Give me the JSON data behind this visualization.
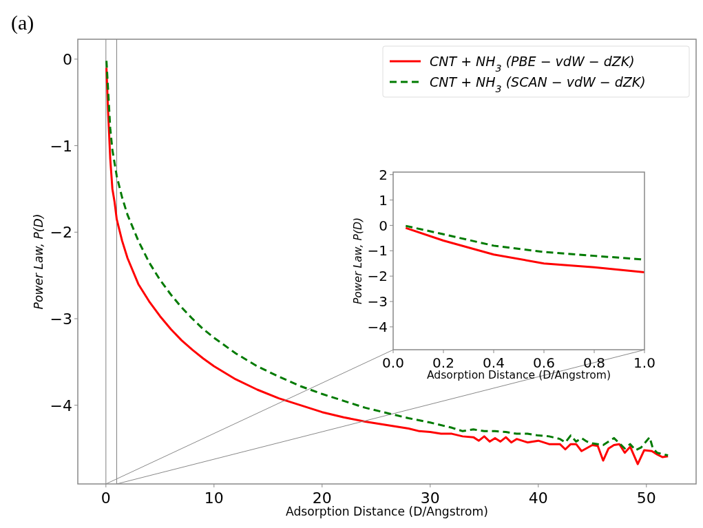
{
  "chart_data": [
    {
      "type": "line",
      "title": "(a)",
      "xlabel": "Adsorption Distance (D/Angstrom)",
      "ylabel": "Power Law,  P(D)",
      "xlim": [
        -2.6,
        54.6
      ],
      "ylim": [
        -4.91,
        0.23
      ],
      "xticks": [
        0,
        10,
        20,
        30,
        40,
        50
      ],
      "yticks": [
        {
          "value": -4,
          "label": "−4"
        },
        {
          "value": -3,
          "label": "−3"
        },
        {
          "value": -2,
          "label": "−2"
        },
        {
          "value": -1,
          "label": "−1"
        },
        0
      ],
      "legend": "top right",
      "ref_lines": [
        {
          "axis": "x",
          "value": 0,
          "color": "#808080"
        },
        {
          "axis": "x",
          "value": 1,
          "color": "#808080"
        }
      ],
      "series": [
        {
          "name": "CNT + NH$_{3}$ (PBE − vdW − dZK)",
          "color": "#ff0000",
          "line_style": "solid",
          "x": [
            0.05,
            0.2,
            0.4,
            0.6,
            0.8,
            1,
            1.5,
            2,
            3,
            4,
            5,
            6,
            7,
            8,
            9,
            10,
            12,
            14,
            16,
            18,
            20,
            22,
            24,
            26,
            28,
            29,
            30,
            31,
            32,
            33,
            34,
            34.5,
            35,
            35.5,
            36,
            36.5,
            37,
            37.5,
            38,
            39,
            40,
            41,
            42,
            42.5,
            43,
            43.5,
            44,
            45,
            45.5,
            46,
            46.5,
            47,
            47.5,
            48,
            48.5,
            49.2,
            49.8,
            50.5,
            51,
            51.5,
            52
          ],
          "values": [
            -0.1,
            -0.6,
            -1.15,
            -1.5,
            -1.65,
            -1.85,
            -2.1,
            -2.3,
            -2.6,
            -2.8,
            -2.97,
            -3.12,
            -3.25,
            -3.36,
            -3.46,
            -3.55,
            -3.7,
            -3.82,
            -3.92,
            -4.0,
            -4.08,
            -4.14,
            -4.19,
            -4.23,
            -4.27,
            -4.3,
            -4.31,
            -4.33,
            -4.33,
            -4.36,
            -4.37,
            -4.41,
            -4.36,
            -4.42,
            -4.38,
            -4.42,
            -4.37,
            -4.43,
            -4.39,
            -4.43,
            -4.41,
            -4.45,
            -4.45,
            -4.51,
            -4.45,
            -4.45,
            -4.53,
            -4.46,
            -4.47,
            -4.64,
            -4.5,
            -4.46,
            -4.45,
            -4.55,
            -4.48,
            -4.68,
            -4.52,
            -4.53,
            -4.57,
            -4.6,
            -4.59
          ]
        },
        {
          "color": "#888888",
          "line_style": "solid",
          "x": [
            0,
            26.57
          ],
          "values": [
            -4.91,
            -3.36
          ]
        },
        {
          "color": "#888888",
          "line_style": "solid",
          "x": [
            1,
            49.82
          ],
          "values": [
            -4.91,
            -3.36
          ]
        },
        {
          "name": "CNT + NH$_{3}$ (SCAN − vdW − dZK)",
          "color": "#007a00",
          "line_style": "dashed",
          "x": [
            0.05,
            0.2,
            0.4,
            0.6,
            0.8,
            1,
            1.5,
            2,
            3,
            4,
            5,
            6,
            7,
            8,
            9,
            10,
            12,
            14,
            16,
            18,
            20,
            22,
            24,
            26,
            28,
            30,
            32,
            33,
            34,
            35,
            36,
            37,
            38,
            39,
            40,
            41,
            42,
            42.5,
            43,
            43.5,
            44,
            44.5,
            45,
            46,
            47,
            47.5,
            48,
            48.5,
            49,
            49.5,
            50.3,
            50.6,
            51,
            52
          ],
          "values": [
            -0.02,
            -0.35,
            -0.8,
            -1.05,
            -1.2,
            -1.35,
            -1.6,
            -1.8,
            -2.1,
            -2.35,
            -2.55,
            -2.72,
            -2.87,
            -3.0,
            -3.12,
            -3.22,
            -3.4,
            -3.55,
            -3.67,
            -3.78,
            -3.87,
            -3.95,
            -4.03,
            -4.09,
            -4.15,
            -4.2,
            -4.26,
            -4.3,
            -4.28,
            -4.3,
            -4.3,
            -4.31,
            -4.33,
            -4.33,
            -4.35,
            -4.36,
            -4.39,
            -4.43,
            -4.35,
            -4.42,
            -4.38,
            -4.42,
            -4.44,
            -4.46,
            -4.38,
            -4.44,
            -4.5,
            -4.45,
            -4.52,
            -4.49,
            -4.37,
            -4.5,
            -4.55,
            -4.58
          ]
        }
      ]
    },
    {
      "type": "line",
      "xlabel": "Adsorption Distance (D/Angstrom)",
      "ylabel": "Power Law,  P(D)",
      "xlim": [
        0,
        1
      ],
      "ylim": [
        -4.9,
        2.1
      ],
      "xticks": [
        {
          "value": 0,
          "label": "0.0"
        },
        {
          "value": 0.2,
          "label": "0.2"
        },
        {
          "value": 0.4,
          "label": "0.4"
        },
        {
          "value": 0.6,
          "label": "0.6"
        },
        {
          "value": 0.8,
          "label": "0.8"
        },
        {
          "value": 1,
          "label": "1.0"
        }
      ],
      "yticks": [
        {
          "value": -4,
          "label": "−4"
        },
        {
          "value": -3,
          "label": "−3"
        },
        {
          "value": -2,
          "label": "−2"
        },
        {
          "value": -1,
          "label": "−1"
        },
        0,
        1,
        2
      ],
      "series": [
        {
          "color": "#ff0000",
          "line_style": "solid",
          "x": [
            0.05,
            0.2,
            0.4,
            0.6,
            0.8,
            1
          ],
          "values": [
            -0.1,
            -0.6,
            -1.15,
            -1.5,
            -1.65,
            -1.85
          ]
        },
        {
          "color": "#007a00",
          "line_style": "dashed",
          "x": [
            0.05,
            0.2,
            0.4,
            0.6,
            0.8,
            1
          ],
          "values": [
            -0.02,
            -0.35,
            -0.8,
            -1.05,
            -1.2,
            -1.35
          ]
        }
      ]
    }
  ]
}
